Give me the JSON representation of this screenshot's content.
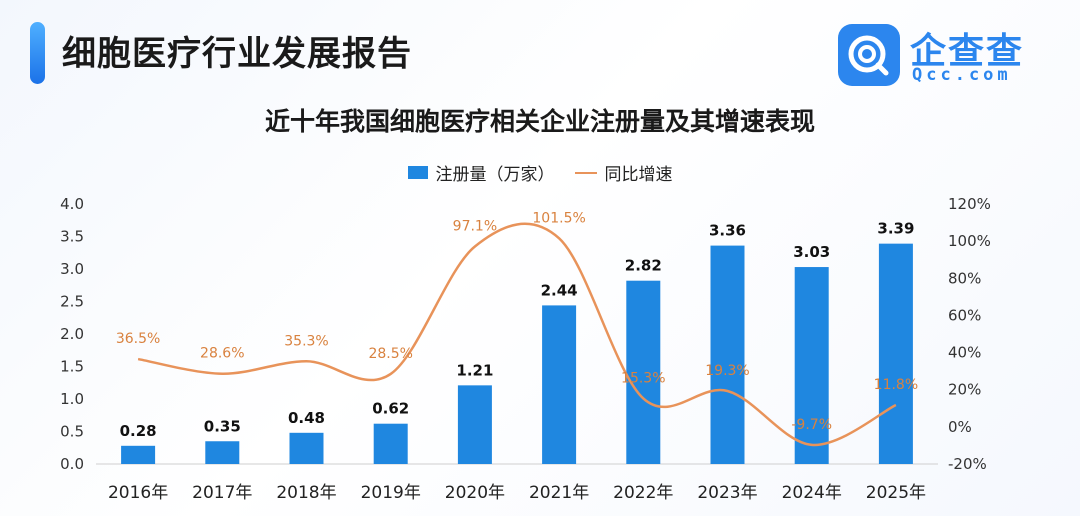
{
  "header": {
    "report_title": "细胞医疗行业发展报告",
    "logo_name": "企查查",
    "logo_domain": "Qcc.com"
  },
  "colors": {
    "bar": "#1f87e0",
    "line": "#e8935a",
    "brand": "#2c86ee"
  },
  "chart_data": {
    "type": "bar",
    "title": "近十年我国细胞医疗相关企业注册量及其增速表现",
    "categories": [
      "2016年",
      "2017年",
      "2018年",
      "2019年",
      "2020年",
      "2021年",
      "2022年",
      "2023年",
      "2024年",
      "2025年"
    ],
    "series": [
      {
        "name": "注册量（万家）",
        "type": "bar",
        "axis": "left",
        "values": [
          0.28,
          0.35,
          0.48,
          0.62,
          1.21,
          2.44,
          2.82,
          3.36,
          3.03,
          3.39
        ],
        "labels": [
          "0.28",
          "0.35",
          "0.48",
          "0.62",
          "1.21",
          "2.44",
          "2.82",
          "3.36",
          "3.03",
          "3.39"
        ]
      },
      {
        "name": "同比增速",
        "type": "line",
        "axis": "right",
        "values": [
          36.5,
          28.6,
          35.3,
          28.5,
          97.1,
          101.5,
          15.3,
          19.3,
          -9.7,
          11.8
        ],
        "labels": [
          "36.5%",
          "28.6%",
          "35.3%",
          "28.5%",
          "97.1%",
          "101.5%",
          "15.3%",
          "19.3%",
          "-9.7%",
          "11.8%"
        ]
      }
    ],
    "ylim_left": [
      0,
      4.0
    ],
    "yticks_left": [
      "0.0",
      "0.5",
      "1.0",
      "1.5",
      "2.0",
      "2.5",
      "3.0",
      "3.5",
      "4.0"
    ],
    "ylim_right": [
      -20,
      120
    ],
    "yticks_right": [
      "-20%",
      "0%",
      "20%",
      "40%",
      "60%",
      "80%",
      "100%",
      "120%"
    ],
    "legend": "top-center"
  }
}
